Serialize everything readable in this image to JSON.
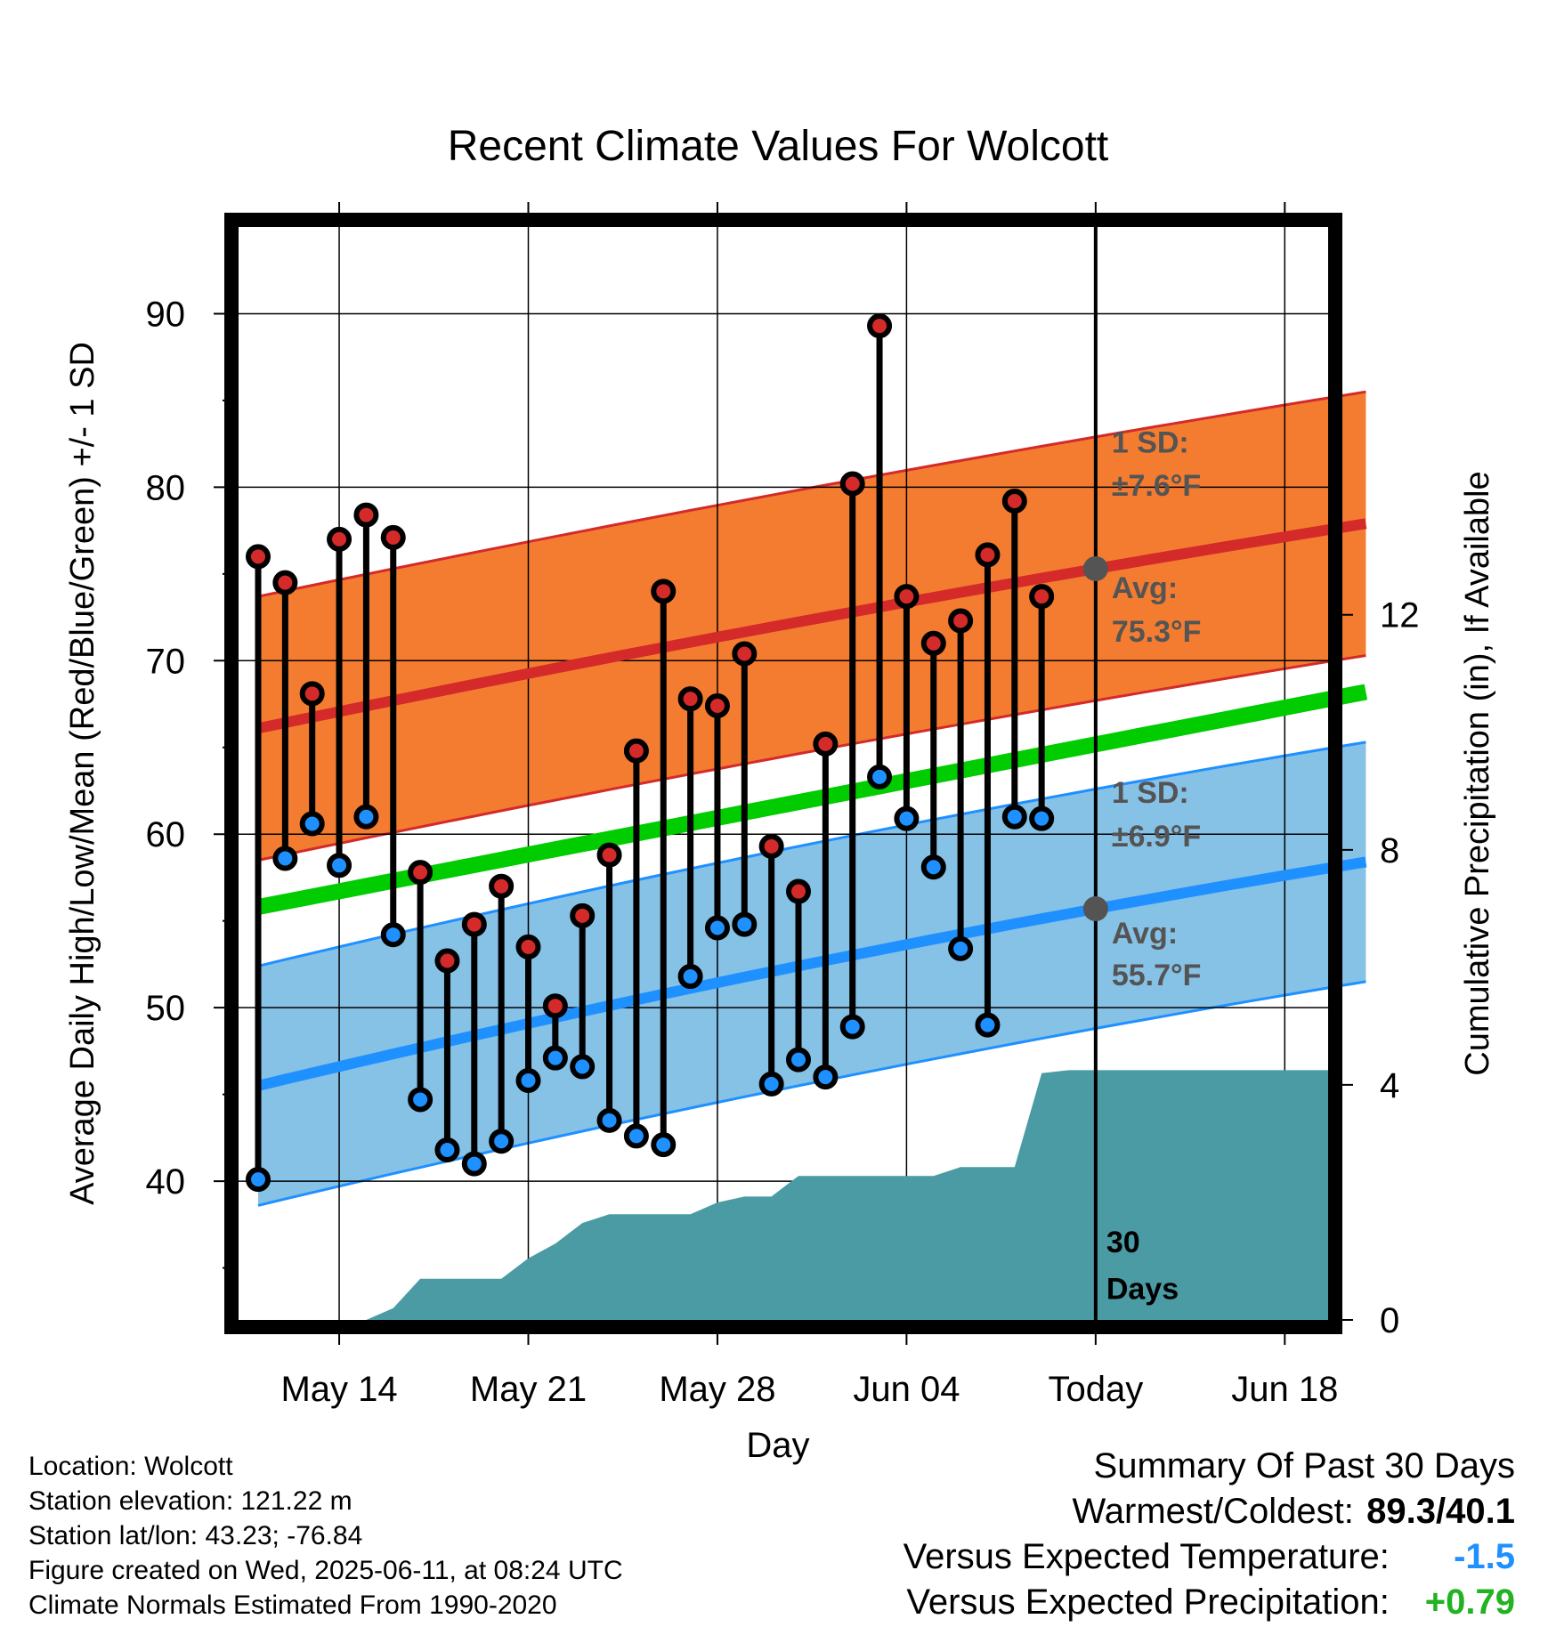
{
  "chart_data": {
    "type": "line",
    "title": "Recent Climate Values For Wolcott",
    "xlabel": "Day",
    "ylabel": "Average Daily High/Low/Mean (Red/Blue/Green) +/- 1 SD",
    "y2label": "Cumulative Precipitation (in), If Available",
    "ylim": [
      32,
      95
    ],
    "y2lim": [
      0,
      18.6
    ],
    "x_ticks": [
      "May 14",
      "May 21",
      "May 28",
      "Jun 04",
      "Today",
      "Jun 18"
    ],
    "y_ticks": [
      40,
      50,
      60,
      70,
      80,
      90
    ],
    "y2_ticks": [
      0,
      4,
      8,
      12
    ],
    "x_dates": [
      "May 11",
      "May 12",
      "May 13",
      "May 14",
      "May 15",
      "May 16",
      "May 17",
      "May 18",
      "May 19",
      "May 20",
      "May 21",
      "May 22",
      "May 23",
      "May 24",
      "May 25",
      "May 26",
      "May 27",
      "May 28",
      "May 29",
      "May 30",
      "May 31",
      "Jun 01",
      "Jun 02",
      "Jun 03",
      "Jun 04",
      "Jun 05",
      "Jun 06",
      "Jun 07",
      "Jun 08",
      "Jun 09",
      "Jun 10",
      "Jun 11",
      "Jun 12",
      "Jun 13",
      "Jun 14",
      "Jun 15",
      "Jun 16",
      "Jun 17",
      "Jun 18",
      "Jun 19",
      "Jun 20",
      "Jun 21"
    ],
    "today_marker": "30 Days",
    "daily_high": [
      76.0,
      74.5,
      68.1,
      77.0,
      78.4,
      77.1,
      57.8,
      52.7,
      54.8,
      57.0,
      53.5,
      50.1,
      55.3,
      58.8,
      64.8,
      74.0,
      67.8,
      67.4,
      70.4,
      59.3,
      56.7,
      65.2,
      80.2,
      89.3,
      73.7,
      71.0,
      72.3,
      76.1,
      79.2,
      73.7
    ],
    "daily_low": [
      40.1,
      58.6,
      60.6,
      58.2,
      61.0,
      54.2,
      44.7,
      41.8,
      41.0,
      42.3,
      45.8,
      47.1,
      46.6,
      43.5,
      42.6,
      42.1,
      51.8,
      54.6,
      54.8,
      45.6,
      47.0,
      46.0,
      48.9,
      63.3,
      60.9,
      58.1,
      53.4,
      49.0,
      61.0,
      60.9
    ],
    "normal_high": {
      "start": 66.1,
      "today": 75.3,
      "end": 77.9,
      "sd": 7.6
    },
    "normal_low": {
      "start": 45.5,
      "today": 55.7,
      "end": 58.4,
      "sd": 6.9
    },
    "normal_mean": {
      "start": 55.8,
      "end": 68.2
    },
    "cumulative_precip": [
      0.0,
      0.0,
      0.0,
      0.0,
      0.0,
      0.2,
      0.7,
      0.7,
      0.7,
      0.7,
      1.05,
      1.3,
      1.65,
      1.8,
      1.8,
      1.8,
      1.8,
      2.0,
      2.1,
      2.1,
      2.45,
      2.45,
      2.45,
      2.45,
      2.45,
      2.45,
      2.6,
      2.6,
      2.6,
      4.2,
      4.25,
      4.25,
      4.25,
      4.25,
      4.25,
      4.25,
      4.25,
      4.25,
      4.25,
      4.25,
      4.25,
      4.25
    ],
    "annotations": {
      "high_sd_label": "1 SD:",
      "high_sd_value": "±7.6°F",
      "high_avg_label": "Avg:",
      "high_avg_value": "75.3°F",
      "low_sd_label": "1 SD:",
      "low_sd_value": "±6.9°F",
      "low_avg_label": "Avg:",
      "low_avg_value": "55.7°F",
      "days_num": "30",
      "days_word": "Days"
    },
    "colors": {
      "high": "#d42a2a",
      "high_band": "#f47c30",
      "low": "#1e90ff",
      "low_band": "#86c1e6",
      "mean": "#00cc00",
      "precip": "#4a9ba4",
      "marker": "#545454"
    }
  },
  "footer": {
    "location": "Location: Wolcott",
    "elevation": "Station elevation: 121.22 m",
    "latlon": "Station lat/lon: 43.23; -76.84",
    "created": "Figure created on Wed, 2025-06-11, at 08:24 UTC",
    "normals": "Climate Normals Estimated From 1990-2020"
  },
  "summary": {
    "title": "Summary Of Past 30 Days",
    "warmest_coldest_label": "Warmest/Coldest:",
    "warmest_coldest_value": "89.3/40.1",
    "temp_label": "Versus Expected Temperature:",
    "temp_value": "-1.5",
    "precip_label": "Versus Expected Precipitation:",
    "precip_value": "+0.79"
  }
}
